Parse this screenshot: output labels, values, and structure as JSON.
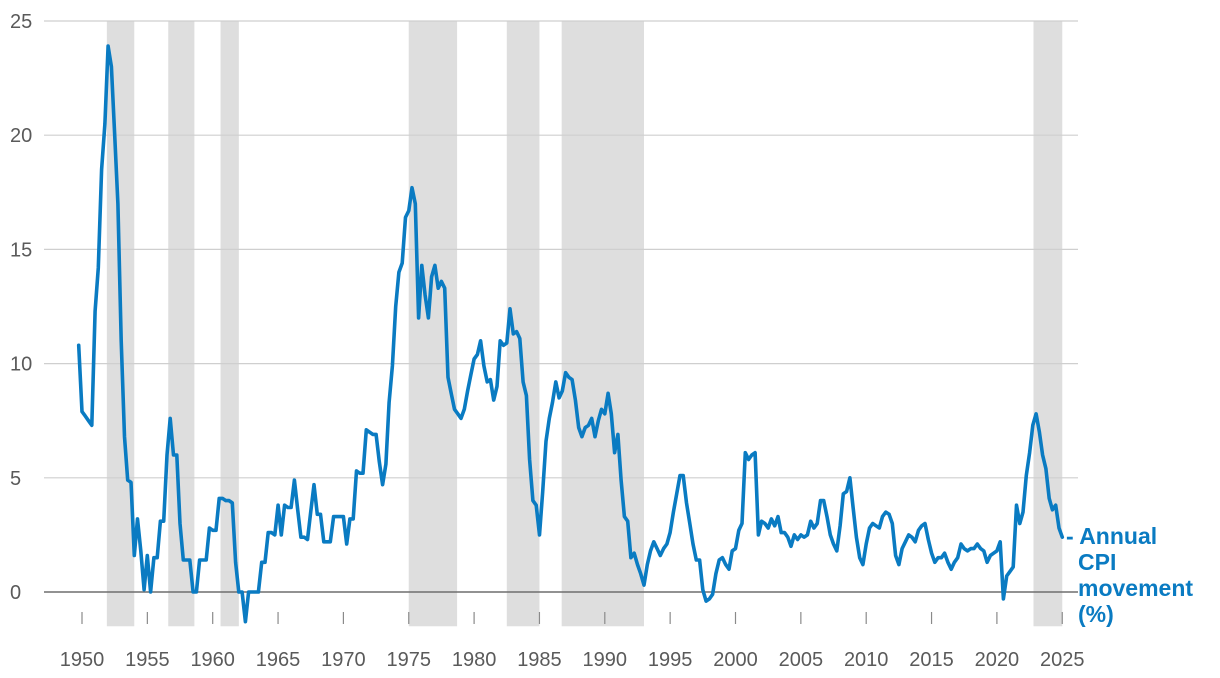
{
  "chart_data": {
    "type": "line",
    "title": "",
    "xlabel": "",
    "ylabel": "",
    "xlim": [
      1948.5,
      2026
    ],
    "ylim": [
      -1.5,
      25
    ],
    "grid": true,
    "x_ticks": [
      "1950",
      "1955",
      "1960",
      "1965",
      "1970",
      "1975",
      "1980",
      "1985",
      "1990",
      "1995",
      "2000",
      "2005",
      "2010",
      "2015",
      "2020",
      "2025"
    ],
    "y_ticks": [
      "0",
      "5",
      "10",
      "15",
      "20",
      "25"
    ],
    "x_tick_values": [
      1950,
      1955,
      1960,
      1965,
      1970,
      1975,
      1980,
      1985,
      1990,
      1995,
      2000,
      2005,
      2010,
      2015,
      2020,
      2025
    ],
    "y_tick_values": [
      0,
      5,
      10,
      15,
      20,
      25
    ],
    "shaded_periods": [
      [
        1951.9,
        1954.0
      ],
      [
        1956.6,
        1958.6
      ],
      [
        1960.6,
        1962.0
      ],
      [
        1975.0,
        1978.7
      ],
      [
        1982.5,
        1985.0
      ],
      [
        1986.7,
        1993.0
      ],
      [
        2022.8,
        2025.0
      ]
    ],
    "series": [
      {
        "name": "Annual CPI movement (%)",
        "legend_text": "- Annual CPI movement (%)",
        "legend_lines": [
          "- Annual",
          "CPI",
          "movement",
          "(%)"
        ],
        "color": "#0a7bc2",
        "x": [
          1949.75,
          1950.0,
          1950.25,
          1950.5,
          1950.75,
          1951.0,
          1951.25,
          1951.5,
          1951.75,
          1952.0,
          1952.25,
          1952.5,
          1952.75,
          1953.0,
          1953.25,
          1953.5,
          1953.75,
          1954.0,
          1954.25,
          1954.5,
          1954.75,
          1955.0,
          1955.25,
          1955.5,
          1955.75,
          1956.0,
          1956.25,
          1956.5,
          1956.75,
          1957.0,
          1957.25,
          1957.5,
          1957.75,
          1958.0,
          1958.25,
          1958.5,
          1958.75,
          1959.0,
          1959.25,
          1959.5,
          1959.75,
          1960.0,
          1960.25,
          1960.5,
          1960.75,
          1961.0,
          1961.25,
          1961.5,
          1961.75,
          1962.0,
          1962.25,
          1962.5,
          1962.75,
          1963.0,
          1963.25,
          1963.5,
          1963.75,
          1964.0,
          1964.25,
          1964.5,
          1964.75,
          1965.0,
          1965.25,
          1965.5,
          1965.75,
          1966.0,
          1966.25,
          1966.5,
          1966.75,
          1967.0,
          1967.25,
          1967.5,
          1967.75,
          1968.0,
          1968.25,
          1968.5,
          1968.75,
          1969.0,
          1969.25,
          1969.5,
          1969.75,
          1970.0,
          1970.25,
          1970.5,
          1970.75,
          1971.0,
          1971.25,
          1971.5,
          1971.75,
          1972.0,
          1972.25,
          1972.5,
          1972.75,
          1973.0,
          1973.25,
          1973.5,
          1973.75,
          1974.0,
          1974.25,
          1974.5,
          1974.75,
          1975.0,
          1975.25,
          1975.5,
          1975.75,
          1976.0,
          1976.25,
          1976.5,
          1976.75,
          1977.0,
          1977.25,
          1977.5,
          1977.75,
          1978.0,
          1978.25,
          1978.5,
          1978.75,
          1979.0,
          1979.25,
          1979.5,
          1979.75,
          1980.0,
          1980.25,
          1980.5,
          1980.75,
          1981.0,
          1981.25,
          1981.5,
          1981.75,
          1982.0,
          1982.25,
          1982.5,
          1982.75,
          1983.0,
          1983.25,
          1983.5,
          1983.75,
          1984.0,
          1984.25,
          1984.5,
          1984.75,
          1985.0,
          1985.25,
          1985.5,
          1985.75,
          1986.0,
          1986.25,
          1986.5,
          1986.75,
          1987.0,
          1987.25,
          1987.5,
          1987.75,
          1988.0,
          1988.25,
          1988.5,
          1988.75,
          1989.0,
          1989.25,
          1989.5,
          1989.75,
          1990.0,
          1990.25,
          1990.5,
          1990.75,
          1991.0,
          1991.25,
          1991.5,
          1991.75,
          1992.0,
          1992.25,
          1992.5,
          1992.75,
          1993.0,
          1993.25,
          1993.5,
          1993.75,
          1994.0,
          1994.25,
          1994.5,
          1994.75,
          1995.0,
          1995.25,
          1995.5,
          1995.75,
          1996.0,
          1996.25,
          1996.5,
          1996.75,
          1997.0,
          1997.25,
          1997.5,
          1997.75,
          1998.0,
          1998.25,
          1998.5,
          1998.75,
          1999.0,
          1999.25,
          1999.5,
          1999.75,
          2000.0,
          2000.25,
          2000.5,
          2000.75,
          2001.0,
          2001.25,
          2001.5,
          2001.75,
          2002.0,
          2002.25,
          2002.5,
          2002.75,
          2003.0,
          2003.25,
          2003.5,
          2003.75,
          2004.0,
          2004.25,
          2004.5,
          2004.75,
          2005.0,
          2005.25,
          2005.5,
          2005.75,
          2006.0,
          2006.25,
          2006.5,
          2006.75,
          2007.0,
          2007.25,
          2007.5,
          2007.75,
          2008.0,
          2008.25,
          2008.5,
          2008.75,
          2009.0,
          2009.25,
          2009.5,
          2009.75,
          2010.0,
          2010.25,
          2010.5,
          2010.75,
          2011.0,
          2011.25,
          2011.5,
          2011.75,
          2012.0,
          2012.25,
          2012.5,
          2012.75,
          2013.0,
          2013.25,
          2013.5,
          2013.75,
          2014.0,
          2014.25,
          2014.5,
          2014.75,
          2015.0,
          2015.25,
          2015.5,
          2015.75,
          2016.0,
          2016.25,
          2016.5,
          2016.75,
          2017.0,
          2017.25,
          2017.5,
          2017.75,
          2018.0,
          2018.25,
          2018.5,
          2018.75,
          2019.0,
          2019.25,
          2019.5,
          2019.75,
          2020.0,
          2020.25,
          2020.5,
          2020.75,
          2021.0,
          2021.25,
          2021.5,
          2021.75,
          2022.0,
          2022.25,
          2022.5,
          2022.75,
          2023.0,
          2023.25,
          2023.5,
          2023.75,
          2024.0,
          2024.25,
          2024.5,
          2024.75,
          2025.0
        ],
        "y": [
          10.8,
          7.9,
          7.7,
          7.5,
          7.3,
          12.3,
          14.2,
          18.5,
          20.5,
          23.9,
          23.0,
          20.0,
          17.0,
          11.0,
          6.8,
          4.9,
          4.8,
          1.6,
          3.2,
          1.8,
          0.1,
          1.6,
          0.0,
          1.5,
          1.5,
          3.1,
          3.1,
          6.0,
          7.6,
          6.0,
          6.0,
          3.0,
          1.4,
          1.4,
          1.4,
          0.0,
          0.0,
          1.4,
          1.4,
          1.4,
          2.8,
          2.7,
          2.7,
          4.1,
          4.1,
          4.0,
          4.0,
          3.9,
          1.3,
          0.0,
          0.0,
          -1.3,
          0.0,
          0.0,
          0.0,
          0.0,
          1.3,
          1.3,
          2.6,
          2.6,
          2.5,
          3.8,
          2.5,
          3.8,
          3.7,
          3.7,
          4.9,
          3.6,
          2.4,
          2.4,
          2.3,
          3.5,
          4.7,
          3.4,
          3.4,
          2.2,
          2.2,
          2.2,
          3.3,
          3.3,
          3.3,
          3.3,
          2.1,
          3.2,
          3.2,
          5.3,
          5.2,
          5.2,
          7.1,
          7.0,
          6.9,
          6.9,
          5.7,
          4.7,
          5.6,
          8.3,
          9.9,
          12.5,
          14.0,
          14.4,
          16.4,
          16.7,
          17.7,
          17.0,
          12.0,
          14.3,
          13.0,
          12.0,
          13.8,
          14.3,
          13.3,
          13.6,
          13.3,
          9.4,
          8.7,
          8.0,
          7.8,
          7.6,
          8.0,
          8.8,
          9.5,
          10.2,
          10.4,
          11.0,
          9.9,
          9.2,
          9.3,
          8.4,
          9.0,
          11.0,
          10.8,
          10.9,
          12.4,
          11.3,
          11.4,
          11.1,
          9.2,
          8.6,
          5.8,
          4.0,
          3.8,
          2.5,
          4.4,
          6.6,
          7.6,
          8.3,
          9.2,
          8.5,
          8.8,
          9.6,
          9.4,
          9.3,
          8.4,
          7.2,
          6.8,
          7.2,
          7.3,
          7.6,
          6.8,
          7.5,
          8.0,
          7.8,
          8.7,
          7.8,
          6.1,
          6.9,
          4.9,
          3.3,
          3.1,
          1.5,
          1.7,
          1.2,
          0.8,
          0.3,
          1.2,
          1.8,
          2.2,
          1.9,
          1.6,
          1.9,
          2.1,
          2.6,
          3.5,
          4.3,
          5.1,
          5.1,
          3.9,
          3.0,
          2.1,
          1.4,
          1.4,
          0.1,
          -0.4,
          -0.3,
          -0.1,
          0.8,
          1.4,
          1.5,
          1.2,
          1.0,
          1.8,
          1.9,
          2.7,
          3.0,
          6.1,
          5.8,
          6.0,
          6.1,
          2.5,
          3.1,
          3.0,
          2.8,
          3.2,
          2.9,
          3.3,
          2.6,
          2.6,
          2.4,
          2.0,
          2.5,
          2.3,
          2.5,
          2.4,
          2.5,
          3.1,
          2.8,
          3.0,
          4.0,
          4.0,
          3.3,
          2.5,
          2.1,
          1.8,
          2.9,
          4.3,
          4.4,
          5.0,
          3.7,
          2.4,
          1.5,
          1.2,
          2.1,
          2.8,
          3.0,
          2.9,
          2.8,
          3.3,
          3.5,
          3.4,
          3.0,
          1.6,
          1.2,
          1.9,
          2.2,
          2.5,
          2.4,
          2.2,
          2.7,
          2.9,
          3.0,
          2.3,
          1.7,
          1.3,
          1.5,
          1.5,
          1.7,
          1.3,
          1.0,
          1.3,
          1.5,
          2.1,
          1.9,
          1.8,
          1.9,
          1.9,
          2.1,
          1.9,
          1.8,
          1.3,
          1.6,
          1.7,
          1.8,
          2.2,
          -0.3,
          0.7,
          0.9,
          1.1,
          3.8,
          3.0,
          3.5,
          5.1,
          6.1,
          7.3,
          7.8,
          7.0,
          6.0,
          5.4,
          4.1,
          3.6,
          3.8,
          2.8,
          2.4
        ]
      }
    ]
  }
}
